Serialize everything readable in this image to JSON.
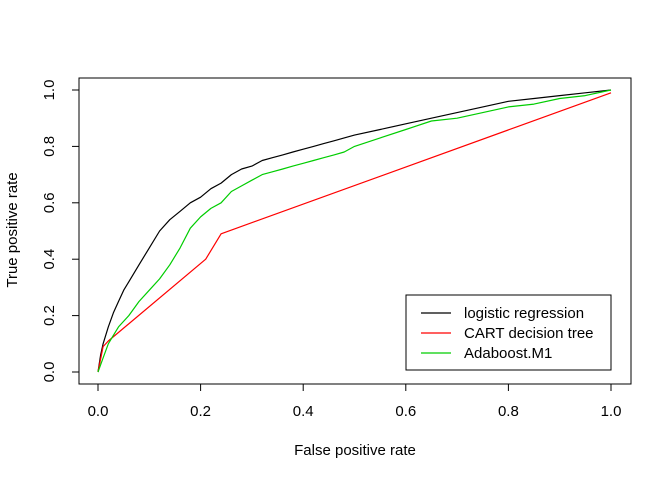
{
  "chart_data": {
    "type": "line",
    "title": "",
    "xlabel": "False positive rate",
    "ylabel": "True positive rate",
    "xlim": [
      0,
      1
    ],
    "ylim": [
      0,
      1
    ],
    "xticks": [
      "0.0",
      "0.2",
      "0.4",
      "0.6",
      "0.8",
      "1.0"
    ],
    "yticks": [
      "0.0",
      "0.2",
      "0.4",
      "0.6",
      "0.8",
      "1.0"
    ],
    "grid": false,
    "legend_position": "bottom-right",
    "series": [
      {
        "name": "logistic regression",
        "color": "#000000",
        "x": [
          0,
          0.005,
          0.01,
          0.02,
          0.03,
          0.04,
          0.05,
          0.06,
          0.08,
          0.1,
          0.12,
          0.14,
          0.16,
          0.18,
          0.2,
          0.22,
          0.24,
          0.26,
          0.28,
          0.3,
          0.32,
          0.34,
          0.36,
          0.38,
          0.4,
          0.42,
          0.44,
          0.46,
          0.48,
          0.5,
          0.55,
          0.6,
          0.65,
          0.7,
          0.75,
          0.8,
          0.85,
          0.9,
          0.95,
          1.0
        ],
        "y": [
          0,
          0.06,
          0.1,
          0.16,
          0.21,
          0.25,
          0.29,
          0.32,
          0.38,
          0.44,
          0.5,
          0.54,
          0.57,
          0.6,
          0.62,
          0.65,
          0.67,
          0.7,
          0.72,
          0.73,
          0.75,
          0.76,
          0.77,
          0.78,
          0.79,
          0.8,
          0.81,
          0.82,
          0.83,
          0.84,
          0.86,
          0.88,
          0.9,
          0.92,
          0.94,
          0.96,
          0.97,
          0.98,
          0.99,
          1.0
        ]
      },
      {
        "name": "CART decision tree",
        "color": "#ff0000",
        "x": [
          0,
          0.01,
          0.02,
          0.21,
          0.24,
          1.0
        ],
        "y": [
          0,
          0.09,
          0.11,
          0.4,
          0.49,
          0.99
        ]
      },
      {
        "name": "Adaboost.M1",
        "color": "#00cd00",
        "x": [
          0,
          0.01,
          0.02,
          0.03,
          0.04,
          0.06,
          0.08,
          0.1,
          0.12,
          0.14,
          0.16,
          0.18,
          0.2,
          0.22,
          0.24,
          0.26,
          0.28,
          0.3,
          0.32,
          0.34,
          0.36,
          0.38,
          0.4,
          0.42,
          0.44,
          0.46,
          0.48,
          0.5,
          0.55,
          0.6,
          0.65,
          0.7,
          0.75,
          0.8,
          0.85,
          0.9,
          0.95,
          1.0
        ],
        "y": [
          0,
          0.05,
          0.1,
          0.13,
          0.16,
          0.2,
          0.25,
          0.29,
          0.33,
          0.38,
          0.44,
          0.51,
          0.55,
          0.58,
          0.6,
          0.64,
          0.66,
          0.68,
          0.7,
          0.71,
          0.72,
          0.73,
          0.74,
          0.75,
          0.76,
          0.77,
          0.78,
          0.8,
          0.83,
          0.86,
          0.89,
          0.9,
          0.92,
          0.94,
          0.95,
          0.97,
          0.98,
          1.0
        ]
      }
    ]
  }
}
